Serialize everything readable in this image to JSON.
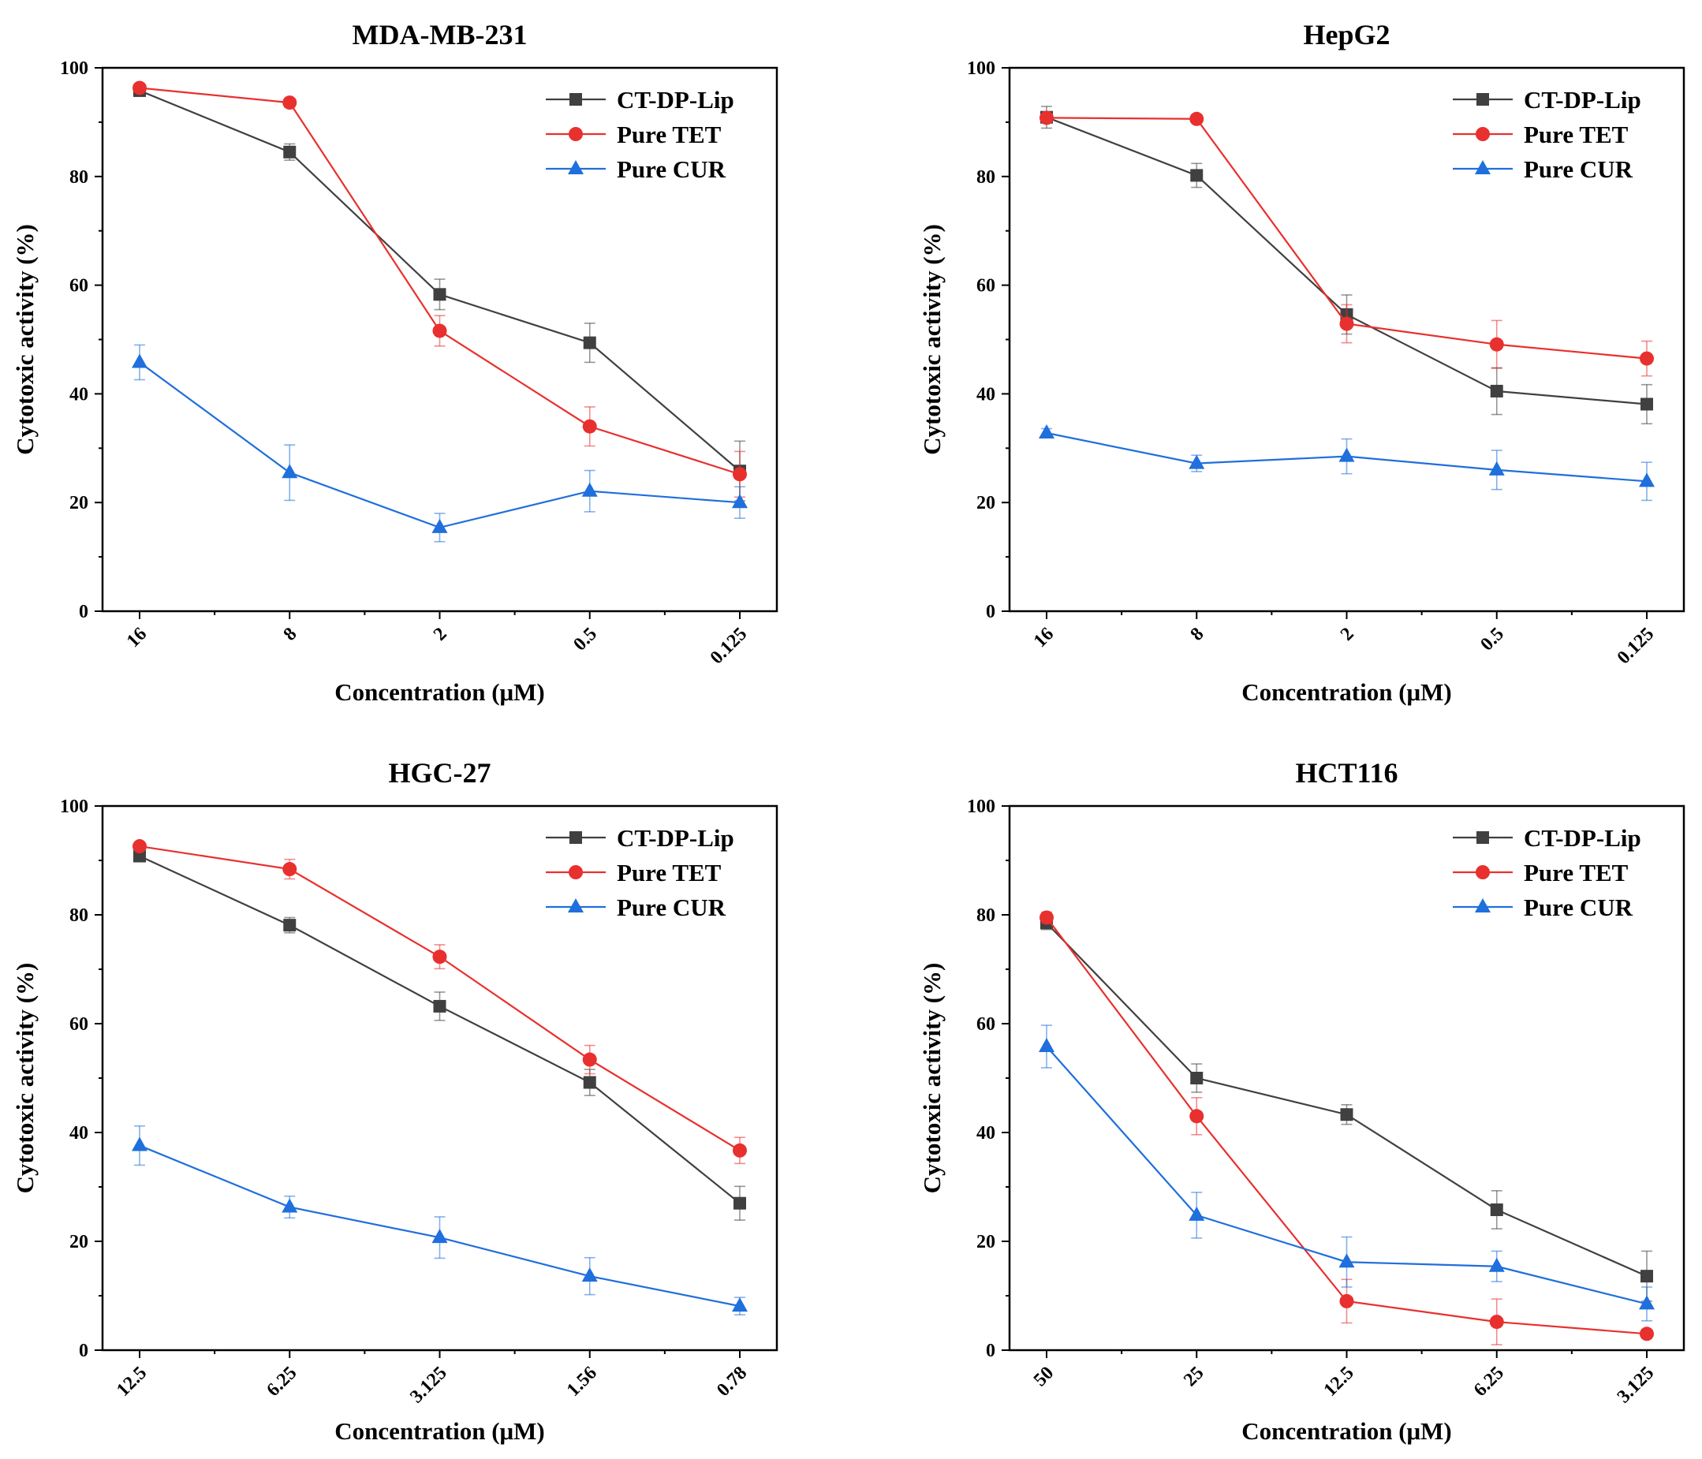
{
  "chart_data": [
    {
      "type": "line",
      "title": "MDA-MB-231",
      "xlabel": "Concentration (μM)",
      "ylabel": "Cytotoxic activity (%)",
      "categories": [
        "16",
        "8",
        "2",
        "0.5",
        "0.125"
      ],
      "ylim": [
        0,
        100
      ],
      "yticks": [
        "0",
        "20",
        "40",
        "60",
        "80",
        "100"
      ],
      "legend_position": "top-right",
      "series": [
        {
          "name": "CT-DP-Lip",
          "color": "#404040",
          "marker": "square",
          "values": [
            95.8,
            84.5,
            58.3,
            49.4,
            25.8
          ],
          "errors": [
            0.8,
            1.5,
            2.8,
            3.6,
            5.5
          ]
        },
        {
          "name": "Pure TET",
          "color": "#e8302e",
          "marker": "circle",
          "values": [
            96.3,
            93.6,
            51.6,
            34.0,
            25.2
          ],
          "errors": [
            0.6,
            0.8,
            2.8,
            3.6,
            4.2
          ]
        },
        {
          "name": "Pure CUR",
          "color": "#1f6fdc",
          "marker": "triangle",
          "values": [
            45.8,
            25.5,
            15.4,
            22.1,
            20.0
          ],
          "errors": [
            3.2,
            5.1,
            2.6,
            3.8,
            2.9
          ]
        }
      ]
    },
    {
      "type": "line",
      "title": "HepG2",
      "xlabel": "Concentration (μM)",
      "ylabel": "Cytotoxic activity (%)",
      "categories": [
        "16",
        "8",
        "2",
        "0.5",
        "0.125"
      ],
      "ylim": [
        0,
        100
      ],
      "yticks": [
        "0",
        "20",
        "40",
        "60",
        "80",
        "100"
      ],
      "legend_position": "top-right",
      "series": [
        {
          "name": "CT-DP-Lip",
          "color": "#404040",
          "marker": "square",
          "values": [
            90.9,
            80.2,
            54.6,
            40.5,
            38.1
          ],
          "errors": [
            2.0,
            2.2,
            3.6,
            4.3,
            3.6
          ]
        },
        {
          "name": "Pure TET",
          "color": "#e8302e",
          "marker": "circle",
          "values": [
            90.8,
            90.6,
            52.9,
            49.1,
            46.5
          ],
          "errors": [
            0.6,
            0.6,
            3.5,
            4.4,
            3.2
          ]
        },
        {
          "name": "Pure CUR",
          "color": "#1f6fdc",
          "marker": "triangle",
          "values": [
            32.8,
            27.2,
            28.5,
            26.0,
            23.9
          ],
          "errors": [
            0.8,
            1.5,
            3.2,
            3.6,
            3.5
          ]
        }
      ]
    },
    {
      "type": "line",
      "title": "HGC-27",
      "xlabel": "Concentration (μM)",
      "ylabel": "Cytotoxic activity (%)",
      "categories": [
        "12.5",
        "6.25",
        "3.125",
        "1.56",
        "0.78"
      ],
      "ylim": [
        0,
        100
      ],
      "yticks": [
        "0",
        "20",
        "40",
        "60",
        "80",
        "100"
      ],
      "legend_position": "top-right",
      "series": [
        {
          "name": "CT-DP-Lip",
          "color": "#404040",
          "marker": "square",
          "values": [
            90.8,
            78.1,
            63.2,
            49.2,
            27.0
          ],
          "errors": [
            1.0,
            1.4,
            2.6,
            2.4,
            3.1
          ]
        },
        {
          "name": "Pure TET",
          "color": "#e8302e",
          "marker": "circle",
          "values": [
            92.6,
            88.4,
            72.3,
            53.4,
            36.7
          ],
          "errors": [
            0.6,
            1.8,
            2.2,
            2.6,
            2.4
          ]
        },
        {
          "name": "Pure CUR",
          "color": "#1f6fdc",
          "marker": "triangle",
          "values": [
            37.6,
            26.3,
            20.7,
            13.6,
            8.1
          ],
          "errors": [
            3.6,
            2.0,
            3.8,
            3.4,
            1.6
          ]
        }
      ]
    },
    {
      "type": "line",
      "title": "HCT116",
      "xlabel": "Concentration (μM)",
      "ylabel": "Cytotoxic activity (%)",
      "categories": [
        "50",
        "25",
        "12.5",
        "6.25",
        "3.125"
      ],
      "ylim": [
        0,
        100
      ],
      "yticks": [
        "0",
        "20",
        "40",
        "60",
        "80",
        "100"
      ],
      "legend_position": "top-right",
      "series": [
        {
          "name": "CT-DP-Lip",
          "color": "#404040",
          "marker": "square",
          "values": [
            78.5,
            50.0,
            43.3,
            25.8,
            13.6
          ],
          "errors": [
            1.2,
            2.6,
            1.8,
            3.5,
            4.6
          ]
        },
        {
          "name": "Pure TET",
          "color": "#e8302e",
          "marker": "circle",
          "values": [
            79.5,
            43.0,
            9.0,
            5.2,
            3.0
          ],
          "errors": [
            1.0,
            3.4,
            4.0,
            4.2,
            0.8
          ]
        },
        {
          "name": "Pure CUR",
          "color": "#1f6fdc",
          "marker": "triangle",
          "values": [
            55.8,
            24.8,
            16.2,
            15.4,
            8.5
          ],
          "errors": [
            3.9,
            4.2,
            4.6,
            2.8,
            3.1
          ]
        }
      ]
    }
  ]
}
